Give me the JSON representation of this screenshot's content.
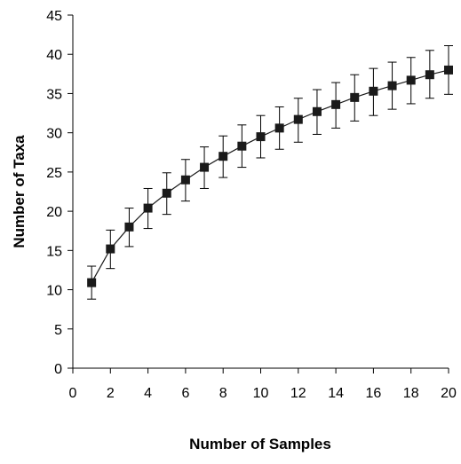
{
  "chart_data": {
    "type": "line",
    "title": "",
    "xlabel": "Number of Samples",
    "ylabel": "Number of Taxa",
    "xlim": [
      0,
      20
    ],
    "ylim": [
      0,
      45
    ],
    "x_ticks": [
      "0",
      "2",
      "4",
      "6",
      "8",
      "10",
      "12",
      "14",
      "16",
      "18",
      "20"
    ],
    "y_ticks": [
      "0",
      "5",
      "10",
      "15",
      "20",
      "25",
      "30",
      "35",
      "40",
      "45"
    ],
    "grid": false,
    "legend": "none",
    "marker": "square",
    "color": "#1a1a1a",
    "series": [
      {
        "x": [
          1,
          2,
          3,
          4,
          5,
          6,
          7,
          8,
          9,
          10,
          11,
          12,
          13,
          14,
          15,
          16,
          17,
          18,
          19,
          20
        ],
        "y": [
          10.9,
          15.2,
          18.0,
          20.4,
          22.3,
          24.0,
          25.6,
          27.0,
          28.3,
          29.5,
          30.6,
          31.7,
          32.7,
          33.6,
          34.5,
          35.3,
          36.0,
          36.7,
          37.4,
          38.0
        ],
        "err_low": [
          8.8,
          12.7,
          15.5,
          17.8,
          19.6,
          21.3,
          22.9,
          24.3,
          25.6,
          26.8,
          27.9,
          28.8,
          29.8,
          30.6,
          31.5,
          32.2,
          33.0,
          33.7,
          34.4,
          34.9
        ],
        "err_high": [
          13.0,
          17.6,
          20.4,
          22.9,
          24.9,
          26.6,
          28.2,
          29.6,
          31.0,
          32.2,
          33.3,
          34.4,
          35.5,
          36.4,
          37.4,
          38.2,
          39.0,
          39.6,
          40.5,
          41.1
        ]
      }
    ]
  }
}
